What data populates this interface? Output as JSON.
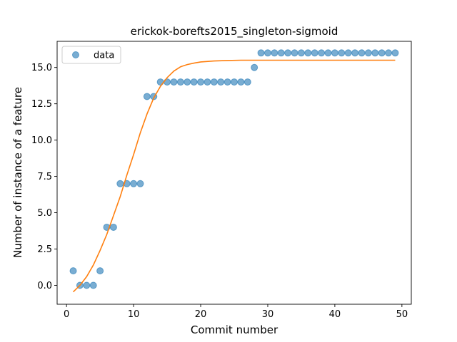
{
  "chart_data": {
    "type": "scatter",
    "title": "erickok-borefts2015_singleton-sigmoid",
    "xlabel": "Commit number",
    "ylabel": "Number of instance of a feature",
    "xlim": [
      -1.4,
      51.4
    ],
    "ylim": [
      -1.3,
      16.8
    ],
    "xticks": [
      0,
      10,
      20,
      30,
      40,
      50
    ],
    "yticks": [
      0.0,
      2.5,
      5.0,
      7.5,
      10.0,
      12.5,
      15.0
    ],
    "ytick_labels": [
      "0.0",
      "2.5",
      "5.0",
      "7.5",
      "10.0",
      "12.5",
      "15.0"
    ],
    "legend_position": "top-left",
    "grid": false,
    "colors": {
      "data": "#1f77b4",
      "fit": "#ff7f0e"
    },
    "series": [
      {
        "name": "data",
        "kind": "points",
        "x": [
          1,
          2,
          3,
          4,
          5,
          6,
          7,
          8,
          9,
          10,
          11,
          12,
          13,
          14,
          15,
          16,
          17,
          18,
          19,
          20,
          21,
          22,
          23,
          24,
          25,
          26,
          27,
          28,
          29,
          30,
          31,
          32,
          33,
          34,
          35,
          36,
          37,
          38,
          39,
          40,
          41,
          42,
          43,
          44,
          45,
          46,
          47,
          48,
          49
        ],
        "y": [
          1,
          0,
          0,
          0,
          1,
          4,
          4,
          7,
          7,
          7,
          7,
          13,
          13,
          14,
          14,
          14,
          14,
          14,
          14,
          14,
          14,
          14,
          14,
          14,
          14,
          14,
          14,
          15,
          16,
          16,
          16,
          16,
          16,
          16,
          16,
          16,
          16,
          16,
          16,
          16,
          16,
          16,
          16,
          16,
          16,
          16,
          16,
          16,
          16
        ]
      },
      {
        "kind": "line",
        "x": [
          1,
          2,
          3,
          4,
          5,
          6,
          7,
          8,
          9,
          10,
          11,
          12,
          13,
          14,
          15,
          16,
          17,
          18,
          19,
          20,
          22,
          24,
          26,
          28,
          30,
          35,
          40,
          45,
          49
        ],
        "y": [
          -0.45,
          0.0,
          0.6,
          1.4,
          2.4,
          3.5,
          4.8,
          6.1,
          7.6,
          9.0,
          10.5,
          11.8,
          12.9,
          13.7,
          14.3,
          14.75,
          15.05,
          15.2,
          15.3,
          15.38,
          15.45,
          15.48,
          15.5,
          15.5,
          15.5,
          15.5,
          15.5,
          15.5,
          15.5
        ]
      }
    ]
  }
}
